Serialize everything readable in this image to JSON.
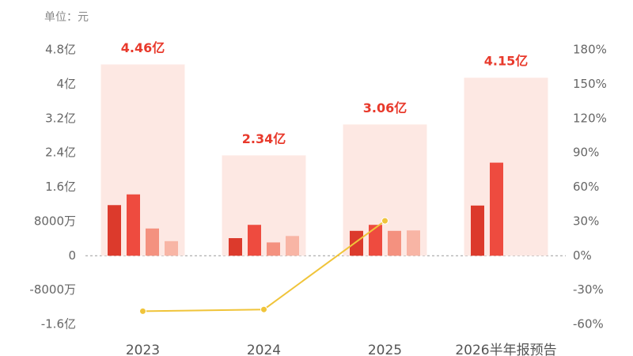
{
  "chart_data": {
    "type": "bar",
    "unit_label": "单位：元",
    "categories": [
      "2023",
      "2024",
      "2025",
      "2026半年报预告"
    ],
    "totals": {
      "color": "#fde8e3",
      "label_color": "#e8392b",
      "values": [
        446000000,
        234000000,
        306000000,
        415000000
      ],
      "value_labels": [
        "4.46亿",
        "2.34亿",
        "3.06亿",
        "4.15亿"
      ]
    },
    "series": [
      {
        "color": "#dc3a2c",
        "values": [
          118000000,
          41000000,
          58000000,
          117000000
        ]
      },
      {
        "color": "#ee4b3f",
        "values": [
          143000000,
          72000000,
          72000000,
          217000000
        ]
      },
      {
        "color": "#f4917f",
        "values": [
          63500000,
          31000000,
          58000000,
          null
        ]
      },
      {
        "color": "#f8b5a5",
        "values": [
          34000000,
          46000000,
          59000000,
          null
        ]
      },
      {
        "type": "line",
        "axis": "y2",
        "color": "#f0c43a",
        "values": [
          -48.5,
          -47,
          30.5,
          null
        ]
      }
    ],
    "ylim": [
      -160000000,
      480000000
    ],
    "yticks": [
      {
        "value": 480000000,
        "label": "4.8亿"
      },
      {
        "value": 400000000,
        "label": "4亿"
      },
      {
        "value": 320000000,
        "label": "3.2亿"
      },
      {
        "value": 240000000,
        "label": "2.4亿"
      },
      {
        "value": 160000000,
        "label": "1.6亿"
      },
      {
        "value": 80000000,
        "label": "8000万"
      },
      0,
      {
        "value": -80000000,
        "label": "-8000万"
      },
      {
        "value": -160000000,
        "label": "-1.6亿"
      }
    ],
    "y2lim": [
      -60,
      180
    ],
    "y2ticks": [
      {
        "value": 180,
        "label": "180%"
      },
      {
        "value": 150,
        "label": "150%"
      },
      {
        "value": 120,
        "label": "120%"
      },
      {
        "value": 90,
        "label": "90%"
      },
      {
        "value": 60,
        "label": "60%"
      },
      {
        "value": 30,
        "label": "30%"
      },
      {
        "value": 0,
        "label": "0%"
      },
      {
        "value": -30,
        "label": "-30%"
      },
      {
        "value": -60,
        "label": "-60%"
      }
    ]
  }
}
